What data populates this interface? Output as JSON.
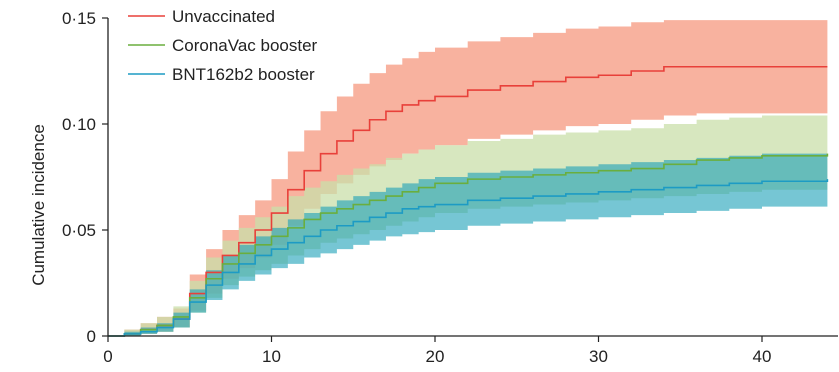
{
  "chart_data": {
    "type": "line",
    "title": "",
    "xlabel": "",
    "ylabel": "Cumulative incidence",
    "xlim": [
      0,
      44
    ],
    "ylim": [
      0,
      0.15
    ],
    "x_ticks": [
      {
        "value": 0,
        "label": "0"
      },
      {
        "value": 10,
        "label": "10"
      },
      {
        "value": 20,
        "label": "20"
      },
      {
        "value": 30,
        "label": "30"
      },
      {
        "value": 40,
        "label": "40"
      }
    ],
    "y_ticks": [
      {
        "value": 0,
        "label": "0"
      },
      {
        "value": 0.05,
        "label": "0·05"
      },
      {
        "value": 0.1,
        "label": "0·10"
      },
      {
        "value": 0.15,
        "label": "0·15"
      }
    ],
    "grid": false,
    "legend_position": "top-left",
    "series": [
      {
        "name": "Unvaccinated",
        "color": "#e8403a",
        "band_color": "#f7a48e",
        "x": [
          0,
          1,
          2,
          3,
          4,
          5,
          6,
          7,
          8,
          9,
          10,
          11,
          12,
          13,
          14,
          15,
          16,
          17,
          18,
          19,
          20,
          22,
          24,
          26,
          28,
          30,
          32,
          34,
          36,
          38,
          40,
          44
        ],
        "y": [
          0,
          0.001,
          0.003,
          0.005,
          0.008,
          0.02,
          0.03,
          0.038,
          0.044,
          0.05,
          0.058,
          0.069,
          0.078,
          0.086,
          0.092,
          0.097,
          0.102,
          0.106,
          0.109,
          0.111,
          0.113,
          0.116,
          0.118,
          0.12,
          0.122,
          0.123,
          0.125,
          0.127,
          0.127,
          0.127,
          0.127,
          0.127
        ],
        "lower": [
          0,
          0,
          0.001,
          0.002,
          0.004,
          0.012,
          0.02,
          0.027,
          0.032,
          0.037,
          0.043,
          0.052,
          0.06,
          0.067,
          0.072,
          0.076,
          0.08,
          0.083,
          0.086,
          0.088,
          0.09,
          0.093,
          0.095,
          0.097,
          0.099,
          0.1,
          0.102,
          0.104,
          0.105,
          0.105,
          0.105,
          0.105
        ],
        "upper": [
          0,
          0.003,
          0.006,
          0.009,
          0.013,
          0.029,
          0.041,
          0.05,
          0.057,
          0.064,
          0.074,
          0.087,
          0.097,
          0.106,
          0.113,
          0.119,
          0.124,
          0.128,
          0.131,
          0.134,
          0.136,
          0.139,
          0.141,
          0.143,
          0.145,
          0.146,
          0.148,
          0.149,
          0.149,
          0.149,
          0.149,
          0.149
        ]
      },
      {
        "name": "CoronaVac booster",
        "color": "#6aae3e",
        "band_color": "#c9dfaa",
        "x": [
          0,
          1,
          2,
          3,
          4,
          5,
          6,
          7,
          8,
          9,
          10,
          11,
          12,
          13,
          14,
          15,
          16,
          17,
          18,
          19,
          20,
          22,
          24,
          26,
          28,
          30,
          32,
          34,
          36,
          38,
          40,
          44
        ],
        "y": [
          0,
          0.001,
          0.003,
          0.005,
          0.009,
          0.018,
          0.027,
          0.034,
          0.039,
          0.043,
          0.047,
          0.051,
          0.055,
          0.058,
          0.06,
          0.062,
          0.064,
          0.066,
          0.068,
          0.07,
          0.072,
          0.074,
          0.075,
          0.076,
          0.077,
          0.078,
          0.079,
          0.081,
          0.083,
          0.084,
          0.085,
          0.086
        ],
        "lower": [
          0,
          0,
          0.001,
          0.002,
          0.004,
          0.011,
          0.018,
          0.024,
          0.028,
          0.031,
          0.034,
          0.038,
          0.041,
          0.044,
          0.046,
          0.048,
          0.05,
          0.052,
          0.054,
          0.056,
          0.058,
          0.06,
          0.061,
          0.062,
          0.063,
          0.064,
          0.065,
          0.066,
          0.067,
          0.068,
          0.069,
          0.07
        ],
        "upper": [
          0,
          0.003,
          0.006,
          0.009,
          0.014,
          0.026,
          0.037,
          0.045,
          0.051,
          0.056,
          0.061,
          0.066,
          0.07,
          0.073,
          0.076,
          0.079,
          0.081,
          0.084,
          0.086,
          0.088,
          0.09,
          0.092,
          0.093,
          0.095,
          0.096,
          0.097,
          0.098,
          0.1,
          0.102,
          0.103,
          0.104,
          0.105
        ]
      },
      {
        "name": "BNT162b2 booster",
        "color": "#1d9bc4",
        "band_color": "#1aa0b8",
        "x": [
          0,
          1,
          2,
          3,
          4,
          5,
          6,
          7,
          8,
          9,
          10,
          11,
          12,
          13,
          14,
          15,
          16,
          17,
          18,
          19,
          20,
          22,
          24,
          26,
          28,
          30,
          32,
          34,
          36,
          38,
          40,
          44
        ],
        "y": [
          0,
          0.001,
          0.002,
          0.004,
          0.008,
          0.016,
          0.024,
          0.03,
          0.034,
          0.038,
          0.041,
          0.044,
          0.047,
          0.05,
          0.052,
          0.054,
          0.056,
          0.058,
          0.06,
          0.061,
          0.062,
          0.064,
          0.065,
          0.066,
          0.067,
          0.068,
          0.069,
          0.07,
          0.071,
          0.072,
          0.073,
          0.074
        ],
        "lower": [
          0,
          0,
          0.001,
          0.002,
          0.004,
          0.011,
          0.017,
          0.022,
          0.026,
          0.029,
          0.032,
          0.034,
          0.037,
          0.039,
          0.041,
          0.043,
          0.045,
          0.047,
          0.048,
          0.049,
          0.05,
          0.052,
          0.053,
          0.054,
          0.055,
          0.056,
          0.057,
          0.058,
          0.059,
          0.06,
          0.061,
          0.062
        ],
        "upper": [
          0,
          0.002,
          0.004,
          0.006,
          0.011,
          0.022,
          0.031,
          0.038,
          0.043,
          0.047,
          0.051,
          0.055,
          0.058,
          0.061,
          0.064,
          0.066,
          0.068,
          0.07,
          0.072,
          0.074,
          0.075,
          0.077,
          0.078,
          0.079,
          0.08,
          0.081,
          0.082,
          0.083,
          0.084,
          0.085,
          0.086,
          0.087
        ]
      }
    ]
  }
}
